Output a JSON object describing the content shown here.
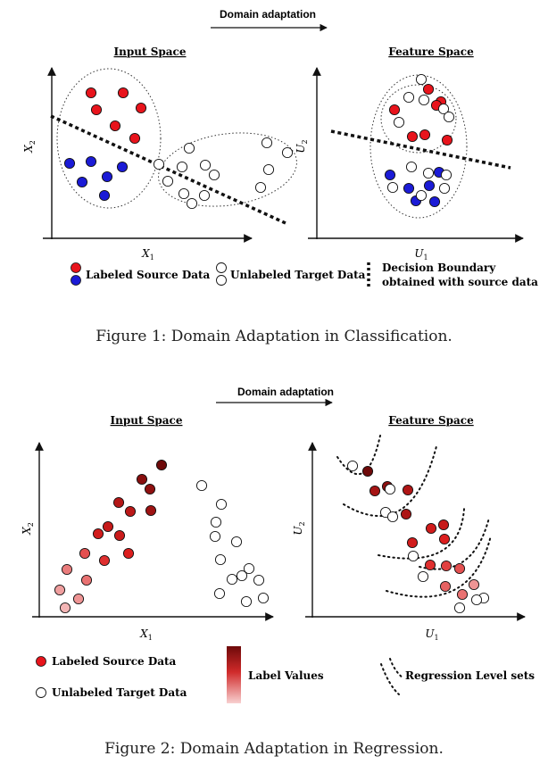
{
  "figure1": {
    "arrow_label": "Domain adaptation",
    "input_title": "Input Space",
    "feature_title": "Feature Space",
    "input_xlabel": "X",
    "input_xsub": "1",
    "input_ylabel": "X",
    "input_ysub": "2",
    "feature_xlabel": "U",
    "feature_xsub": "1",
    "feature_ylabel": "U",
    "feature_ysub": "2",
    "legend_labeled": "Labeled Source Data",
    "legend_unlabeled": "Unlabeled Target Data",
    "legend_boundary_line1": "Decision Boundary",
    "legend_boundary_line2": "obtained with source data",
    "caption": "Figure 1: Domain Adaptation in Classification."
  },
  "figure2": {
    "arrow_label": "Domain adaptation",
    "input_title": "Input Space",
    "feature_title": "Feature Space",
    "input_xlabel": "X",
    "input_xsub": "1",
    "input_ylabel": "X",
    "input_ysub": "2",
    "feature_xlabel": "U",
    "feature_xsub": "1",
    "feature_ylabel": "U",
    "feature_ysub": "2",
    "legend_labeled": "Labeled Source Data",
    "legend_unlabeled": "Unlabeled Target Data",
    "legend_label_values": "Label Values",
    "legend_level_sets": "Regression Level sets",
    "caption": "Figure 2: Domain Adaptation in Regression."
  },
  "colors": {
    "red": "#e8141c",
    "blue": "#1b1bd6",
    "dark_red": "#6e0a0a",
    "light_red": "#f5c6c6",
    "axis": "#111111"
  }
}
